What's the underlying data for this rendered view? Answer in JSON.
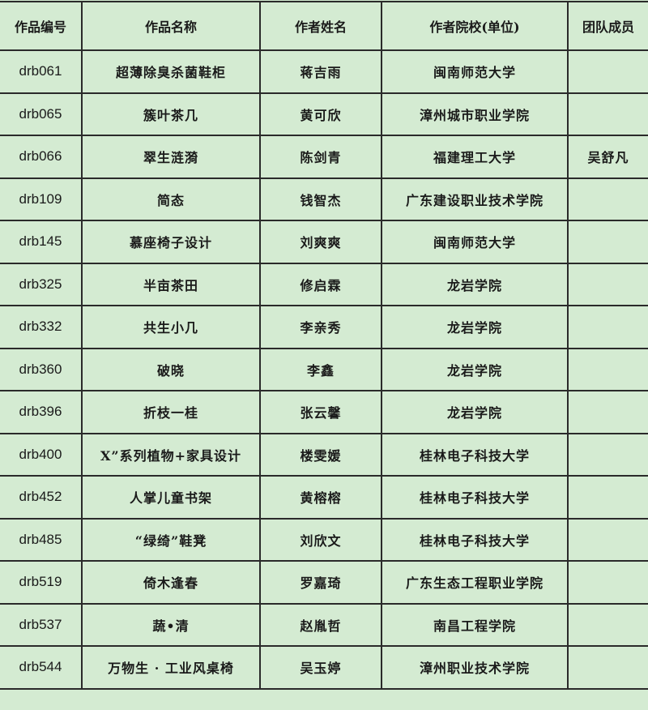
{
  "table": {
    "headers": [
      "作品编号",
      "作品名称",
      "作者姓名",
      "作者院校(单位)",
      "团队成员"
    ],
    "rows": [
      [
        "drb061",
        "超薄除臭杀菌鞋柜",
        "蒋吉雨",
        "闽南师范大学",
        ""
      ],
      [
        "drb065",
        "簇叶茶几",
        "黄可欣",
        "漳州城市职业学院",
        ""
      ],
      [
        "drb066",
        "翠生涟漪",
        "陈剑青",
        "福建理工大学",
        "吴舒凡"
      ],
      [
        "drb109",
        "简态",
        "钱智杰",
        "广东建设职业技术学院",
        ""
      ],
      [
        "drb145",
        "慕座椅子设计",
        "刘爽爽",
        "闽南师范大学",
        ""
      ],
      [
        "drb325",
        "半亩茶田",
        "修启霖",
        "龙岩学院",
        ""
      ],
      [
        "drb332",
        "共生小几",
        "李亲秀",
        "龙岩学院",
        ""
      ],
      [
        "drb360",
        "破晓",
        "李鑫",
        "龙岩学院",
        ""
      ],
      [
        "drb396",
        "折枝一桂",
        "张云馨",
        "龙岩学院",
        ""
      ],
      [
        "drb400",
        "X”系列植物+家具设计",
        "楼雯媛",
        "桂林电子科技大学",
        ""
      ],
      [
        "drb452",
        "人掌儿童书架",
        "黄榕榕",
        "桂林电子科技大学",
        ""
      ],
      [
        "drb485",
        "“绿绮”鞋凳",
        "刘欣文",
        "桂林电子科技大学",
        ""
      ],
      [
        "drb519",
        "倚木逢春",
        "罗嘉琦",
        "广东生态工程职业学院",
        ""
      ],
      [
        "drb537",
        "蔬•清",
        "赵胤哲",
        "南昌工程学院",
        ""
      ],
      [
        "drb544",
        "万物生 · 工业风桌椅",
        "吴玉婷",
        "漳州职业技术学院",
        ""
      ]
    ]
  }
}
